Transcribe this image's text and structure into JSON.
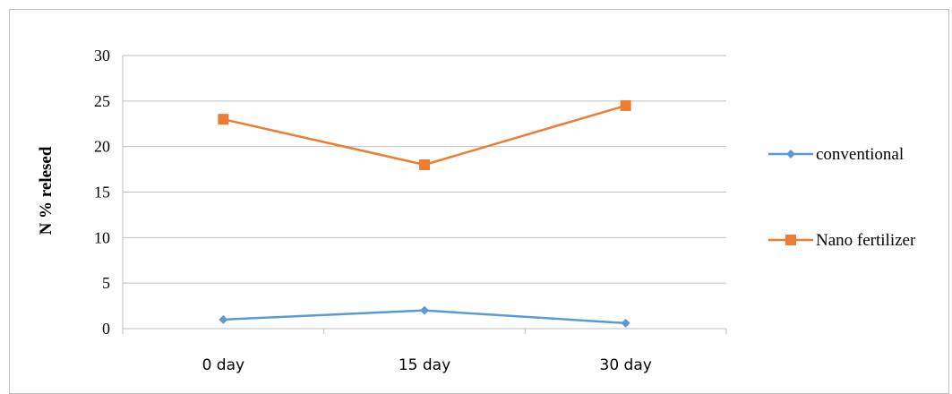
{
  "chart_data": {
    "type": "line",
    "title": "",
    "xlabel": "",
    "ylabel": "N % relesed",
    "categories": [
      "0 day",
      "15 day",
      "30 day"
    ],
    "ylim": [
      0,
      30
    ],
    "yticks": [
      0,
      5,
      10,
      15,
      20,
      25,
      30
    ],
    "grid": true,
    "legend_position": "right",
    "series": [
      {
        "name": "conventional",
        "values": [
          1.0,
          2.0,
          0.6
        ],
        "color": "#5b9bd5",
        "marker": "diamond"
      },
      {
        "name": "Nano fertilizer",
        "values": [
          23.0,
          18.0,
          24.5
        ],
        "color": "#ed7d31",
        "marker": "square"
      }
    ]
  }
}
